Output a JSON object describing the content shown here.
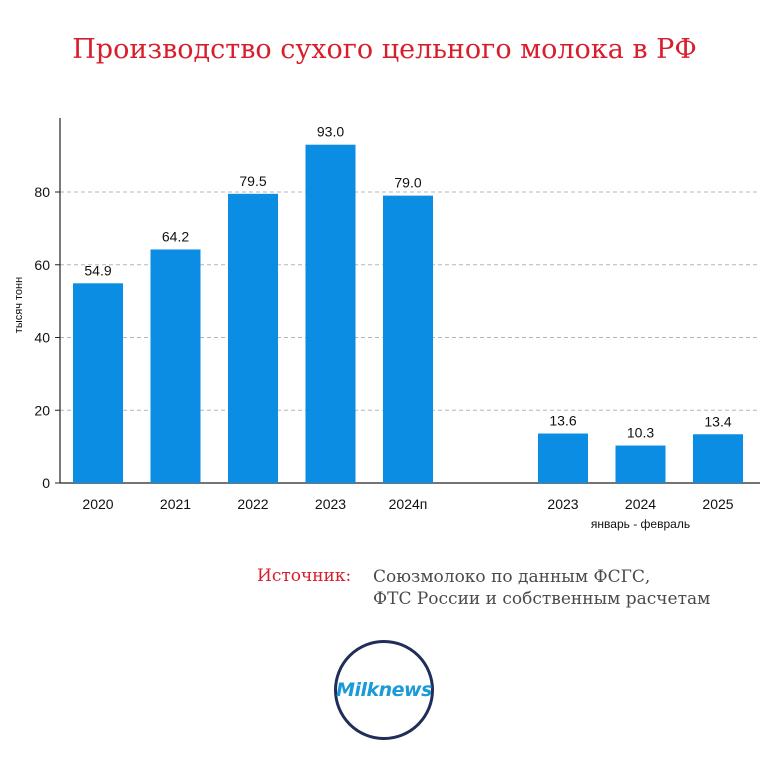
{
  "title": "Производство сухого цельного молока в РФ",
  "chart_data": {
    "type": "bar",
    "ylabel": "тысяч тонн",
    "ylim": [
      0,
      95
    ],
    "yticks": [
      0,
      20,
      40,
      60,
      80
    ],
    "grid": true,
    "bar_color": "#0a8de3",
    "groups": [
      {
        "label": "",
        "categories": [
          "2020",
          "2021",
          "2022",
          "2023",
          "2024п"
        ],
        "values": [
          54.9,
          64.2,
          79.5,
          93.0,
          79.0
        ],
        "value_labels": [
          "54.9",
          "64.2",
          "79.5",
          "93.0",
          "79.0"
        ]
      },
      {
        "label": "январь - февраль",
        "categories": [
          "2023",
          "2024",
          "2025"
        ],
        "values": [
          13.6,
          10.3,
          13.4
        ],
        "value_labels": [
          "13.6",
          "10.3",
          "13.4"
        ]
      }
    ]
  },
  "source": {
    "label": "Источник:",
    "lines": [
      "Союзмолоко по данным ФСГС,",
      "ФТС России и собственным расчетам"
    ]
  },
  "logo": {
    "text": "Milknews",
    "border_color": "#1f2f5a",
    "text_color": "#1a9ad6"
  }
}
